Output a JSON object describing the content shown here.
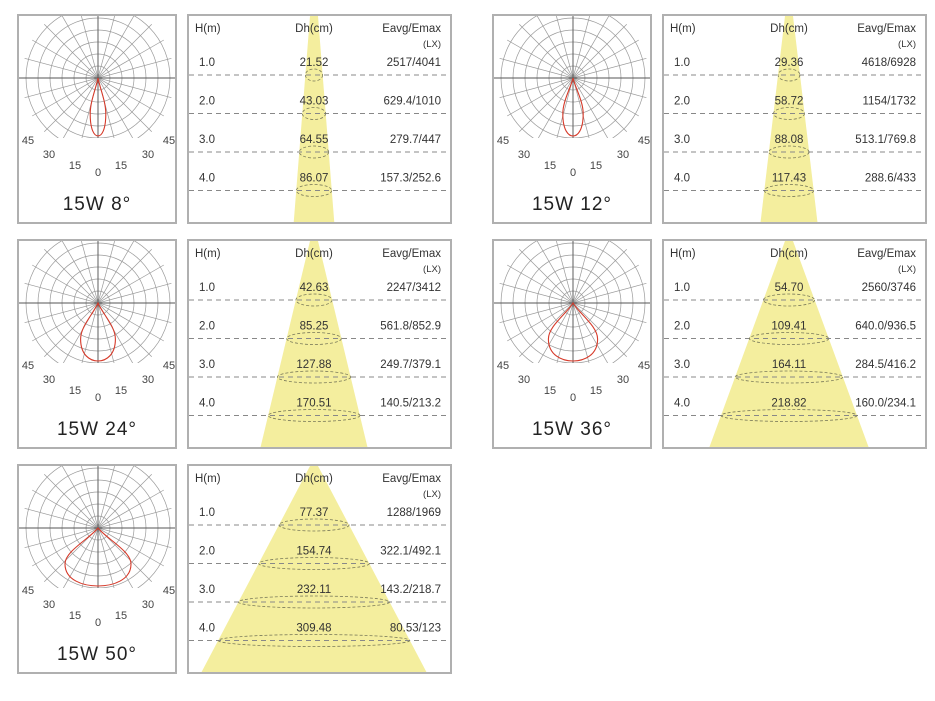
{
  "chart_data": [
    {
      "type": "table",
      "label": "15W 8°",
      "beam_angle_deg": 8,
      "polar_tick_labels": [
        "45",
        "30",
        "15",
        "0",
        "15",
        "30",
        "45"
      ],
      "columns": [
        "H(m)",
        "Dh(cm)",
        "Eavg/Emax",
        "(LX)"
      ],
      "rows": [
        {
          "h": "1.0",
          "dh": "21.52",
          "e": "2517/4041"
        },
        {
          "h": "2.0",
          "dh": "43.03",
          "e": "629.4/1010"
        },
        {
          "h": "3.0",
          "dh": "64.55",
          "e": "279.7/447"
        },
        {
          "h": "4.0",
          "dh": "86.07",
          "e": "157.3/252.6"
        }
      ]
    },
    {
      "type": "table",
      "label": "15W 12°",
      "beam_angle_deg": 12,
      "polar_tick_labels": [
        "45",
        "30",
        "15",
        "0",
        "15",
        "30",
        "45"
      ],
      "columns": [
        "H(m)",
        "Dh(cm)",
        "Eavg/Emax",
        "(LX)"
      ],
      "rows": [
        {
          "h": "1.0",
          "dh": "29.36",
          "e": "4618/6928"
        },
        {
          "h": "2.0",
          "dh": "58.72",
          "e": "1154/1732"
        },
        {
          "h": "3.0",
          "dh": "88.08",
          "e": "513.1/769.8"
        },
        {
          "h": "4.0",
          "dh": "117.43",
          "e": "288.6/433"
        }
      ]
    },
    {
      "type": "table",
      "label": "15W 24°",
      "beam_angle_deg": 24,
      "polar_tick_labels": [
        "45",
        "30",
        "15",
        "0",
        "15",
        "30",
        "45"
      ],
      "columns": [
        "H(m)",
        "Dh(cm)",
        "Eavg/Emax",
        "(LX)"
      ],
      "rows": [
        {
          "h": "1.0",
          "dh": "42.63",
          "e": "2247/3412"
        },
        {
          "h": "2.0",
          "dh": "85.25",
          "e": "561.8/852.9"
        },
        {
          "h": "3.0",
          "dh": "127.88",
          "e": "249.7/379.1"
        },
        {
          "h": "4.0",
          "dh": "170.51",
          "e": "140.5/213.2"
        }
      ]
    },
    {
      "type": "table",
      "label": "15W 36°",
      "beam_angle_deg": 36,
      "polar_tick_labels": [
        "45",
        "30",
        "15",
        "0",
        "15",
        "30",
        "45"
      ],
      "columns": [
        "H(m)",
        "Dh(cm)",
        "Eavg/Emax",
        "(LX)"
      ],
      "rows": [
        {
          "h": "1.0",
          "dh": "54.70",
          "e": "2560/3746"
        },
        {
          "h": "2.0",
          "dh": "109.41",
          "e": "640.0/936.5"
        },
        {
          "h": "3.0",
          "dh": "164.11",
          "e": "284.5/416.2"
        },
        {
          "h": "4.0",
          "dh": "218.82",
          "e": "160.0/234.1"
        }
      ]
    },
    {
      "type": "table",
      "label": "15W 50°",
      "beam_angle_deg": 50,
      "polar_tick_labels": [
        "45",
        "30",
        "15",
        "0",
        "15",
        "30",
        "45"
      ],
      "columns": [
        "H(m)",
        "Dh(cm)",
        "Eavg/Emax",
        "(LX)"
      ],
      "rows": [
        {
          "h": "1.0",
          "dh": "77.37",
          "e": "1288/1969"
        },
        {
          "h": "2.0",
          "dh": "154.74",
          "e": "322.1/492.1"
        },
        {
          "h": "3.0",
          "dh": "232.11",
          "e": "143.2/218.7"
        },
        {
          "h": "4.0",
          "dh": "309.48",
          "e": "80.53/123"
        }
      ]
    }
  ],
  "colors": {
    "frame": "#b0b0b0",
    "grid": "#9a9a9a",
    "curve": "#d63a2a",
    "beam": "#f4ee9e",
    "text": "#333333",
    "dash": "#888888"
  }
}
